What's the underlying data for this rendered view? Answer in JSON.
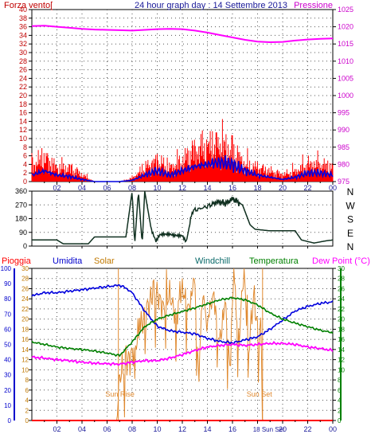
{
  "chart_data": [
    {
      "type": "line",
      "title": "24 hour graph day : 14 Settembre 2013",
      "left_axis_label": "Forza vento[",
      "right_axis_label": "Pressione",
      "x_ticks": [
        "02",
        "04",
        "06",
        "08",
        "10",
        "12",
        "14",
        "16",
        "18",
        "20",
        "22",
        "00"
      ],
      "y_left_ticks": [
        "0",
        "2",
        "4",
        "6",
        "8",
        "10",
        "12",
        "14",
        "16",
        "18",
        "20",
        "22",
        "24",
        "26",
        "28",
        "30",
        "32",
        "34",
        "36",
        "38",
        "40"
      ],
      "y_right_ticks": [
        "975",
        "980",
        "985",
        "990",
        "995",
        "1000",
        "1005",
        "1010",
        "1015",
        "1020",
        "1025"
      ],
      "y_left_range": [
        0,
        40
      ],
      "y_right_range": [
        975,
        1025
      ],
      "x_range": [
        0,
        24
      ],
      "grid": true,
      "colors": {
        "gust": "#ff0000",
        "wind": "#0000e0",
        "pressure": "#ff00ff",
        "left_axis": "#c00000",
        "right_axis": "#cc00cc"
      },
      "series": [
        {
          "key": "pressure",
          "axis": "right",
          "x": [
            0,
            1,
            2,
            3,
            4,
            5,
            6,
            7,
            8,
            9,
            10,
            11,
            12,
            13,
            14,
            15,
            16,
            17,
            18,
            19,
            20,
            21,
            22,
            23,
            24
          ],
          "values": [
            1020.2,
            1020.3,
            1020.0,
            1019.7,
            1019.4,
            1019.2,
            1019.1,
            1019.0,
            1018.9,
            1019.1,
            1019.3,
            1019.4,
            1019.3,
            1018.9,
            1018.3,
            1017.6,
            1016.9,
            1016.2,
            1015.7,
            1015.5,
            1015.6,
            1016.0,
            1016.3,
            1016.5,
            1016.6
          ]
        },
        {
          "key": "gust",
          "axis": "left",
          "x": [
            0,
            1,
            2,
            3,
            4,
            5,
            6,
            7,
            8,
            9,
            10,
            11,
            12,
            13,
            14,
            15,
            16,
            17,
            18,
            19,
            20,
            21,
            22,
            23,
            24
          ],
          "values": [
            5,
            7,
            4,
            4,
            2,
            0,
            0,
            0,
            1,
            4,
            6,
            4,
            6,
            9,
            10,
            11,
            9,
            5,
            4,
            3,
            2,
            3,
            5,
            5,
            4
          ]
        },
        {
          "key": "wind",
          "axis": "left",
          "x": [
            0,
            1,
            2,
            3,
            4,
            5,
            6,
            7,
            8,
            9,
            10,
            11,
            12,
            13,
            14,
            15,
            16,
            17,
            18,
            19,
            20,
            21,
            22,
            23,
            24
          ],
          "values": [
            1.5,
            2.5,
            1.5,
            1.2,
            0.5,
            0,
            0,
            0,
            0.3,
            1.5,
            2.5,
            1.5,
            2.5,
            3.5,
            4.0,
            4.5,
            4.0,
            2.5,
            1.5,
            1.0,
            0.5,
            1.0,
            2.0,
            2.0,
            1.5
          ]
        }
      ]
    },
    {
      "type": "line",
      "y_ticks": [
        "0",
        "90",
        "180",
        "270",
        "360"
      ],
      "y_range": [
        0,
        360
      ],
      "x_range": [
        0,
        24
      ],
      "compass": [
        "N",
        "W",
        "S",
        "E",
        "N"
      ],
      "grid": true,
      "colors": {
        "direction": "#103020"
      },
      "series": [
        {
          "key": "direction",
          "x": [
            0,
            2,
            2.5,
            4.5,
            5,
            7.5,
            8,
            8.2,
            8.5,
            8.8,
            9,
            9.5,
            9.9,
            10.2,
            11,
            12,
            12.3,
            12.8,
            13.2,
            14,
            14.8,
            15.5,
            16,
            16.8,
            17.4,
            17.8,
            19,
            20,
            21,
            21.5,
            22.5,
            23.5,
            24
          ],
          "values": [
            40,
            40,
            15,
            15,
            60,
            60,
            360,
            10,
            360,
            10,
            360,
            120,
            30,
            70,
            80,
            60,
            20,
            230,
            240,
            260,
            290,
            280,
            310,
            270,
            140,
            110,
            100,
            100,
            100,
            40,
            20,
            35,
            40
          ]
        }
      ]
    },
    {
      "type": "line",
      "legend": [
        "Pioggia",
        "Umidita",
        "Solar",
        "Windchill",
        "Temperatura",
        "Dew Point (°C)"
      ],
      "x_ticks": [
        "02",
        "04",
        "06",
        "08",
        "10",
        "12",
        "14",
        "16",
        "18",
        "20",
        "22",
        "00"
      ],
      "x_tick_label_18": "18 Sun Set",
      "y_far_left_ticks": [
        "0",
        "10",
        "20",
        "30",
        "40",
        "50",
        "60",
        "70",
        "80",
        "90",
        "100"
      ],
      "y_left_ticks": [
        "0",
        "2",
        "4",
        "6",
        "8",
        "10",
        "12",
        "14",
        "16",
        "18",
        "20",
        "22",
        "24",
        "26",
        "28",
        "30"
      ],
      "y_right_ticks": [
        "0",
        "2",
        "4",
        "6",
        "8",
        "10",
        "12",
        "14",
        "16",
        "18",
        "20",
        "22",
        "24",
        "26",
        "28",
        "30"
      ],
      "y_humidity_range": [
        0,
        100
      ],
      "y_temp_range": [
        0,
        30
      ],
      "x_range": [
        0,
        24
      ],
      "grid": true,
      "annotations": {
        "sunrise": "Sun Rise",
        "sunset": "Sun Set"
      },
      "sunrise_x": 6.9,
      "sunset_x": 18.4,
      "colors": {
        "rain": "#ff0000",
        "humidity": "#0000dd",
        "solar": "#e08a30",
        "windchill": "#0a6a6a",
        "temperature": "#008000",
        "dewpoint": "#ff00ff",
        "sun_marker": "#e08a30",
        "far_left_axis": "#0000cc",
        "left_axis": "#c07800",
        "right_axis": "#008000",
        "legend_rain": "#ff0000",
        "legend_humidity": "#0000cc",
        "legend_solar": "#c07800",
        "legend_windchill": "#0a6a6a",
        "legend_temperature": "#008000",
        "legend_dewpoint": "#ff00ff"
      },
      "series": [
        {
          "key": "humidity",
          "axis": "humidity",
          "x": [
            0,
            1,
            2,
            3,
            4,
            5,
            6,
            7,
            7.5,
            8,
            9,
            10,
            11,
            12,
            13,
            14,
            15,
            16,
            17,
            18,
            19,
            20,
            21,
            22,
            23,
            24
          ],
          "values": [
            82,
            84,
            84,
            85,
            86,
            87,
            88,
            89,
            87,
            84,
            72,
            62,
            59,
            58,
            57,
            54,
            52,
            51,
            53,
            55,
            60,
            66,
            72,
            75,
            77,
            78
          ]
        },
        {
          "key": "temperature",
          "axis": "temp",
          "x": [
            0,
            1,
            2,
            3,
            4,
            5,
            6,
            7,
            8,
            9,
            10,
            11,
            12,
            13,
            14,
            15,
            16,
            17,
            18,
            19,
            20,
            21,
            22,
            23,
            24
          ],
          "values": [
            15.5,
            15.0,
            14.5,
            14.2,
            14.0,
            13.7,
            13.3,
            12.8,
            15.5,
            18.5,
            20.0,
            20.8,
            21.5,
            22.2,
            23.0,
            23.8,
            24.2,
            23.8,
            22.8,
            21.2,
            20.0,
            19.2,
            18.5,
            17.8,
            17.3
          ]
        },
        {
          "key": "dewpoint",
          "axis": "temp",
          "x": [
            0,
            1,
            2,
            3,
            4,
            5,
            6,
            7,
            8,
            9,
            10,
            11,
            12,
            13,
            14,
            15,
            16,
            17,
            18,
            19,
            20,
            21,
            22,
            23,
            24
          ],
          "values": [
            12.5,
            12.3,
            12.0,
            11.8,
            11.5,
            11.3,
            11.2,
            11.1,
            11.5,
            11.8,
            11.8,
            12.3,
            13.0,
            13.8,
            14.5,
            14.8,
            15.0,
            14.8,
            15.0,
            15.2,
            15.2,
            15.0,
            14.5,
            14.2,
            13.8
          ]
        },
        {
          "key": "solar",
          "axis": "temp",
          "x": [
            0,
            6.8,
            7.0,
            7.2,
            7.5,
            8.0,
            8.5,
            9.0,
            9.5,
            10.0,
            10.5,
            11.0,
            11.5,
            12.0,
            12.5,
            13.0,
            13.3,
            13.6,
            14.0,
            14.5,
            15.0,
            15.4,
            15.8,
            16.1,
            16.5,
            16.9,
            17.3,
            17.7,
            18.0,
            18.3,
            18.4,
            24
          ],
          "values": [
            0,
            0,
            9,
            10,
            11,
            13,
            17,
            21,
            24,
            25,
            22,
            25,
            20,
            26,
            22,
            27,
            8,
            25,
            20,
            25,
            14,
            24,
            10,
            29,
            15,
            30,
            14,
            25,
            18,
            15,
            0,
            0
          ]
        },
        {
          "key": "rain",
          "axis": "temp",
          "x": [
            0,
            24
          ],
          "values": [
            0,
            0
          ]
        }
      ]
    }
  ]
}
